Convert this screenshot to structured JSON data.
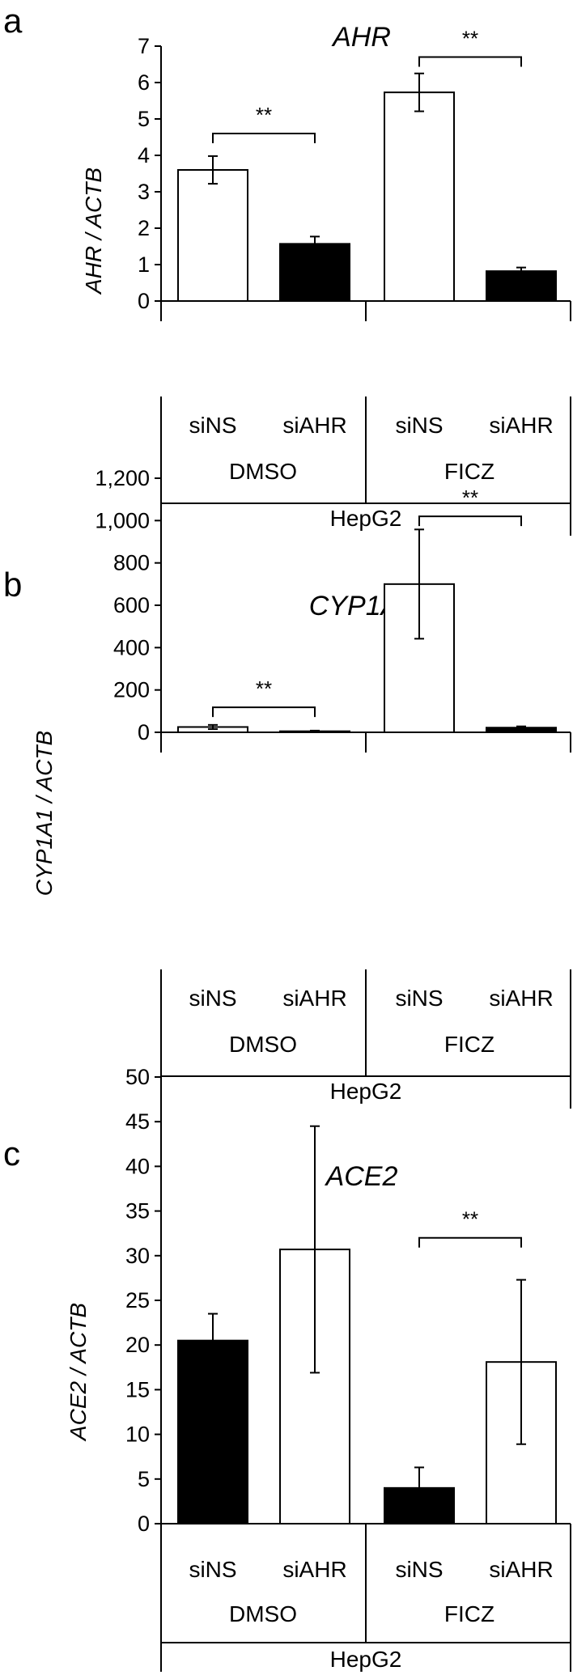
{
  "chart_data": [
    {
      "type": "bar",
      "panel": "a",
      "title": "AHR",
      "ylabel": "AHR / ACTB",
      "ylim": [
        0,
        7
      ],
      "ytick_labels": [
        "0",
        "1",
        "2",
        "3",
        "4",
        "5",
        "6",
        "7"
      ],
      "categories": [
        "siNS",
        "siAHR",
        "siNS",
        "siAHR"
      ],
      "groups": [
        "DMSO",
        "FICZ"
      ],
      "cell_line": "HepG2",
      "values": [
        3.6,
        1.57,
        5.73,
        0.82
      ],
      "errors": [
        0.38,
        0.2,
        0.52,
        0.1
      ],
      "fills": [
        "#ffffff",
        "#000000",
        "#ffffff",
        "#000000"
      ],
      "significance": [
        {
          "from": 0,
          "to": 1,
          "y": 4.6,
          "label": "**"
        },
        {
          "from": 2,
          "to": 3,
          "y": 6.7,
          "label": "**"
        }
      ]
    },
    {
      "type": "bar",
      "panel": "b",
      "title": "CYP1A1",
      "ylabel": "CYP1A1 / ACTB",
      "ylim": [
        0,
        1200
      ],
      "ytick_labels": [
        "0",
        "200",
        "400",
        "600",
        "800",
        "1,000",
        "1,200"
      ],
      "categories": [
        "siNS",
        "siAHR",
        "siNS",
        "siAHR"
      ],
      "groups": [
        "DMSO",
        "FICZ"
      ],
      "cell_line": "HepG2",
      "values": [
        25,
        5,
        700,
        22
      ],
      "errors": [
        10,
        3,
        258,
        6
      ],
      "fills": [
        "#ffffff",
        "#000000",
        "#ffffff",
        "#000000"
      ],
      "significance": [
        {
          "from": 0,
          "to": 1,
          "y": 118,
          "label": "**"
        },
        {
          "from": 2,
          "to": 3,
          "y": 1020,
          "label": "**"
        }
      ]
    },
    {
      "type": "bar",
      "panel": "c",
      "title": "ACE2",
      "ylabel": "ACE2 / ACTB",
      "ylim": [
        0,
        50
      ],
      "ytick_labels": [
        "0",
        "5",
        "10",
        "15",
        "20",
        "25",
        "30",
        "35",
        "40",
        "45",
        "50"
      ],
      "categories": [
        "siNS",
        "siAHR",
        "siNS",
        "siAHR"
      ],
      "groups": [
        "DMSO",
        "FICZ"
      ],
      "cell_line": "HepG2",
      "values": [
        20.5,
        30.7,
        4.0,
        18.1
      ],
      "errors": [
        3.0,
        13.8,
        2.3,
        9.2
      ],
      "fills": [
        "#000000",
        "#ffffff",
        "#000000",
        "#ffffff"
      ],
      "significance": [
        {
          "from": 2,
          "to": 3,
          "y": 32,
          "label": "**"
        }
      ]
    }
  ]
}
